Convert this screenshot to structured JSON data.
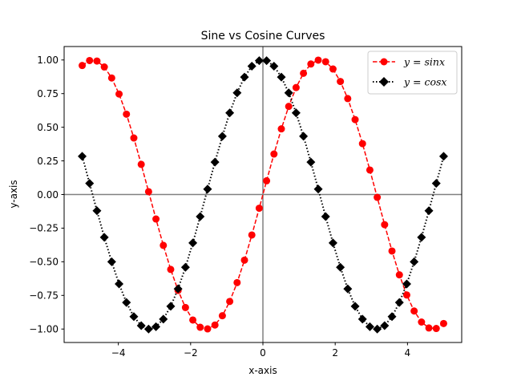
{
  "chart_data": {
    "type": "line",
    "title": "Sine vs Cosine Curves",
    "xlabel": "x-axis",
    "ylabel": "y-axis",
    "xlim": [
      -5.5,
      5.5
    ],
    "ylim": [
      -1.1,
      1.1
    ],
    "xticks": [
      -4,
      -2,
      0,
      2,
      4
    ],
    "xtick_labels": [
      "−4",
      "−2",
      "0",
      "2",
      "4"
    ],
    "yticks": [
      -1.0,
      -0.75,
      -0.5,
      -0.25,
      0.0,
      0.25,
      0.5,
      0.75,
      1.0
    ],
    "ytick_labels": [
      "−1.00",
      "−0.75",
      "−0.50",
      "−0.25",
      "0.00",
      "0.25",
      "0.50",
      "0.75",
      "1.00"
    ],
    "grid": false,
    "reference_lines": [
      {
        "axis": "x",
        "value": 0,
        "color": "#808080"
      },
      {
        "axis": "y",
        "value": 0,
        "color": "#808080"
      }
    ],
    "legend_position": "top-right",
    "x": [
      -5.0,
      -4.796,
      -4.592,
      -4.388,
      -4.184,
      -3.98,
      -3.776,
      -3.571,
      -3.367,
      -3.163,
      -2.959,
      -2.755,
      -2.551,
      -2.347,
      -2.143,
      -1.939,
      -1.735,
      -1.531,
      -1.327,
      -1.122,
      -0.918,
      -0.714,
      -0.51,
      -0.306,
      -0.102,
      0.102,
      0.306,
      0.51,
      0.714,
      0.918,
      1.122,
      1.327,
      1.531,
      1.735,
      1.939,
      2.143,
      2.347,
      2.551,
      2.755,
      2.959,
      3.163,
      3.367,
      3.571,
      3.776,
      3.98,
      4.184,
      4.388,
      4.592,
      4.796,
      5.0
    ],
    "series": [
      {
        "name": "y = sinx",
        "color": "#ff0000",
        "linestyle": "dashed",
        "marker": "circle",
        "values": [
          0.959,
          0.996,
          0.992,
          0.948,
          0.866,
          0.747,
          0.597,
          0.42,
          0.224,
          0.021,
          -0.182,
          -0.378,
          -0.557,
          -0.713,
          -0.84,
          -0.933,
          -0.987,
          -0.999,
          -0.97,
          -0.901,
          -0.795,
          -0.655,
          -0.488,
          -0.301,
          -0.102,
          0.102,
          0.301,
          0.488,
          0.655,
          0.795,
          0.901,
          0.97,
          0.999,
          0.987,
          0.933,
          0.84,
          0.713,
          0.557,
          0.378,
          0.182,
          -0.021,
          -0.224,
          -0.42,
          -0.597,
          -0.747,
          -0.866,
          -0.948,
          -0.992,
          -0.996,
          -0.959
        ]
      },
      {
        "name": "y = cosx",
        "color": "#000000",
        "linestyle": "dotted",
        "marker": "diamond",
        "values": [
          0.284,
          0.083,
          -0.121,
          -0.318,
          -0.5,
          -0.665,
          -0.803,
          -0.908,
          -0.975,
          -1.0,
          -0.983,
          -0.926,
          -0.831,
          -0.701,
          -0.541,
          -0.36,
          -0.164,
          0.04,
          0.241,
          0.433,
          0.607,
          0.756,
          0.873,
          0.954,
          0.995,
          0.995,
          0.954,
          0.873,
          0.756,
          0.607,
          0.433,
          0.241,
          0.04,
          -0.164,
          -0.36,
          -0.541,
          -0.701,
          -0.831,
          -0.926,
          -0.983,
          -1.0,
          -0.975,
          -0.908,
          -0.803,
          -0.665,
          -0.5,
          -0.318,
          -0.121,
          0.083,
          0.284
        ]
      }
    ]
  },
  "legend": {
    "sin_label": "y = sinx",
    "cos_label": "y = cosx"
  }
}
